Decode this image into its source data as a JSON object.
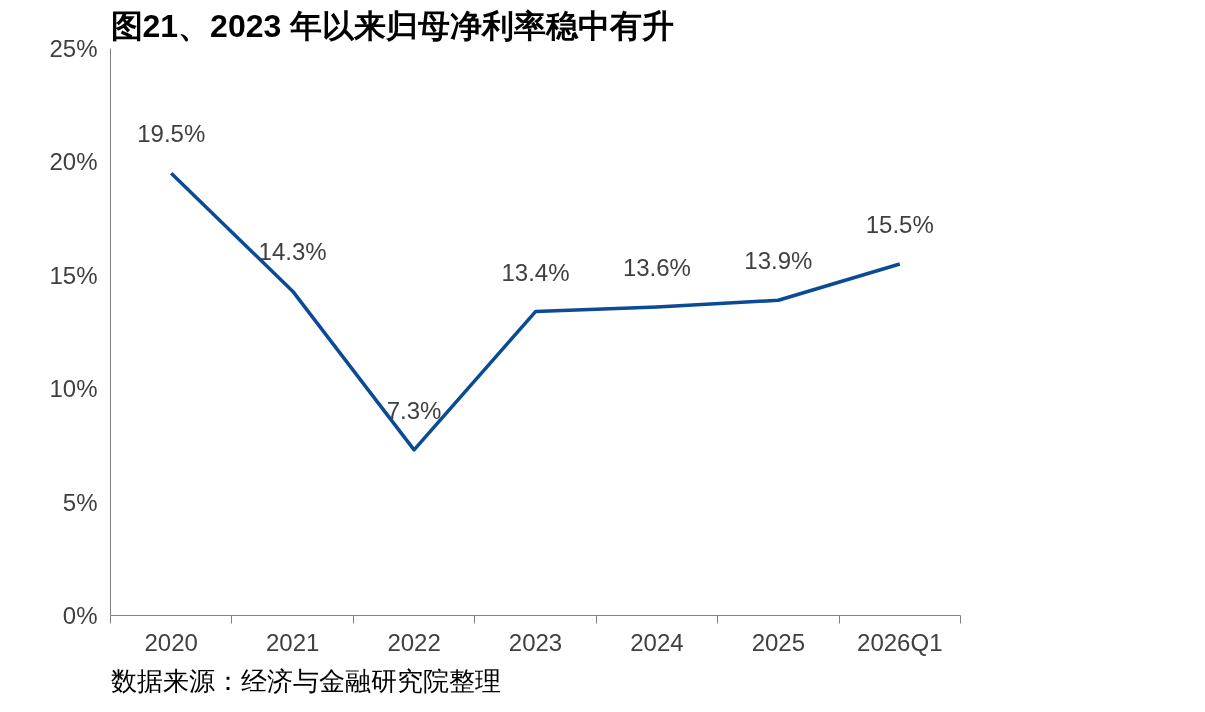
{
  "chart_data": {
    "type": "line",
    "title": "图21、2023 年以来归母净利率稳中有升",
    "categories": [
      "2020",
      "2021",
      "2022",
      "2023",
      "2024",
      "2025",
      "2026Q1"
    ],
    "series": [
      {
        "color": "#0b4a94",
        "values": [
          19.5,
          14.3,
          7.3,
          13.4,
          13.6,
          13.9,
          15.5
        ]
      }
    ],
    "ylim": [
      0,
      25
    ],
    "yticks": [
      {
        "value": 0,
        "label": "0%"
      },
      {
        "value": 5,
        "label": "5%"
      },
      {
        "value": 10,
        "label": "10%"
      },
      {
        "value": 15,
        "label": "15%"
      },
      {
        "value": 20,
        "label": "20%"
      },
      {
        "value": 25,
        "label": "25%"
      }
    ],
    "value_labels": [
      "19.5%",
      "14.3%",
      "7.3%",
      "13.4%",
      "13.6%",
      "13.9%",
      "15.5%"
    ],
    "grid": false,
    "marker": "none",
    "line_style": "solid",
    "annotations": [
      "数据来源：经济与金融研究院整理"
    ]
  }
}
